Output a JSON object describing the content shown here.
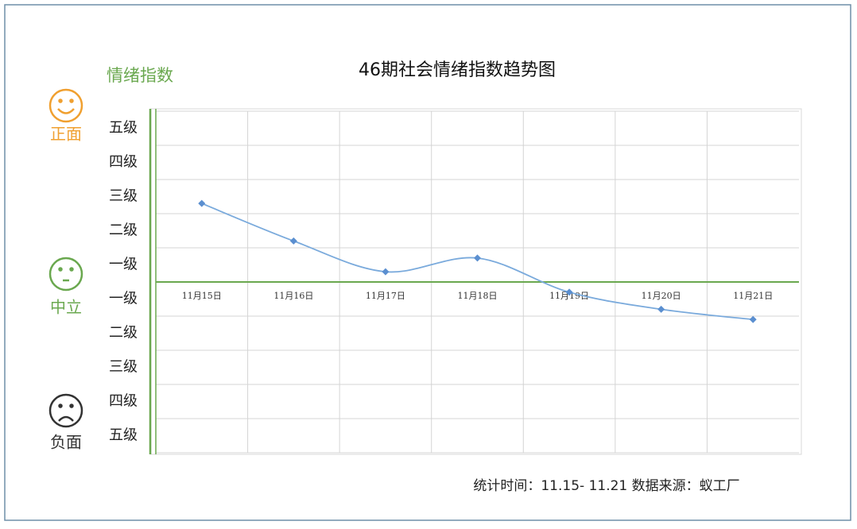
{
  "chart_data": {
    "type": "line",
    "title": "46期社会情绪指数趋势图",
    "y_label": "情绪指数",
    "positive_label": "正面",
    "neutral_label": "中立",
    "negative_label": "负面",
    "categories": [
      "11月15日",
      "11月16日",
      "11月17日",
      "11月18日",
      "11月19日",
      "11月20日",
      "11月21日"
    ],
    "values": [
      2.3,
      1.2,
      0.3,
      0.7,
      -0.3,
      -0.8,
      -1.1
    ],
    "color": "#7aaadc",
    "ylim": [
      -5,
      5
    ],
    "yticks": [
      {
        "value": 5,
        "label": "五级"
      },
      {
        "value": 4,
        "label": "四级"
      },
      {
        "value": 3,
        "label": "三级"
      },
      {
        "value": 2,
        "label": "二级"
      },
      {
        "value": 1,
        "label": "一级"
      },
      {
        "value": -1,
        "label": "一级"
      },
      {
        "value": -2,
        "label": "二级"
      },
      {
        "value": -3,
        "label": "三级"
      },
      {
        "value": -4,
        "label": "四级"
      },
      {
        "value": -5,
        "label": "五级"
      }
    ],
    "grid": true,
    "footer": "统计时间：11.15- 11.21 数据来源：蚁工厂"
  }
}
